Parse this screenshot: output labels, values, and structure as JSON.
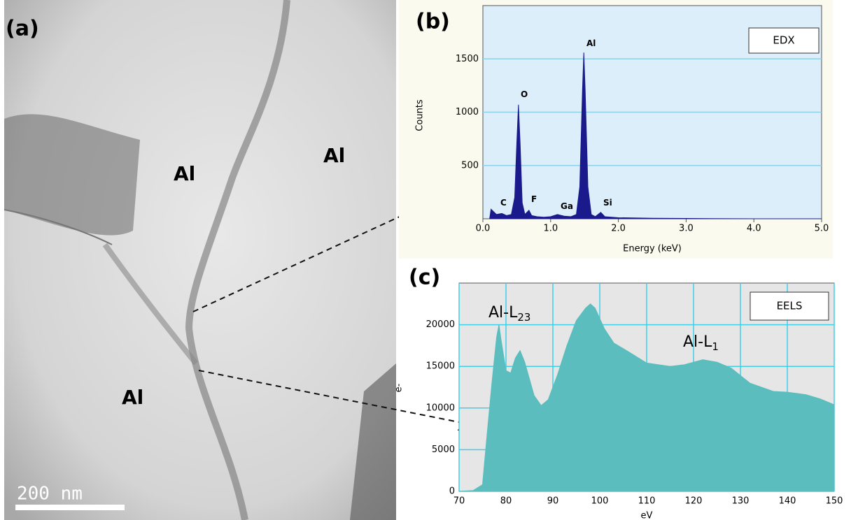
{
  "micrograph": {
    "panel": "(a)",
    "labels": [
      "Al",
      "Al",
      "Al"
    ],
    "scale_bar": "200 nm"
  },
  "chart_data": [
    {
      "type": "area",
      "panel": "(b)",
      "legend": "EDX",
      "xlabel": "Energy (keV)",
      "ylabel": "Counts",
      "color": "#1a1a8c",
      "background": "#dceefa",
      "grid_color": "#8fd0ea",
      "grid": "y",
      "xlim": [
        0,
        5
      ],
      "ylim": [
        0,
        2000
      ],
      "xticks": [
        {
          "value": 0,
          "label": "0.0"
        },
        {
          "value": 1,
          "label": "1.0"
        },
        {
          "value": 2,
          "label": "2.0"
        },
        {
          "value": 3,
          "label": "3.0"
        },
        {
          "value": 4,
          "label": "4.0"
        },
        {
          "value": 5,
          "label": "5.0"
        }
      ],
      "yticks": [
        500,
        1000,
        1500
      ],
      "x": [
        0.1,
        0.12,
        0.2,
        0.28,
        0.35,
        0.42,
        0.47,
        0.5,
        0.525,
        0.55,
        0.58,
        0.62,
        0.68,
        0.72,
        0.8,
        0.9,
        1.0,
        1.1,
        1.2,
        1.3,
        1.38,
        1.43,
        1.47,
        1.49,
        1.51,
        1.55,
        1.6,
        1.66,
        1.74,
        1.8,
        2.0,
        2.5,
        3.0,
        4.0,
        5.0
      ],
      "values": [
        0,
        90,
        40,
        50,
        30,
        40,
        200,
        700,
        1070,
        700,
        150,
        40,
        80,
        30,
        20,
        15,
        20,
        40,
        25,
        20,
        40,
        300,
        1200,
        1560,
        1200,
        300,
        40,
        20,
        60,
        20,
        10,
        5,
        3,
        0,
        0
      ],
      "annotations": [
        {
          "text": "C"
        },
        {
          "text": "O"
        },
        {
          "text": "F"
        },
        {
          "text": "Ga"
        },
        {
          "text": "Al"
        },
        {
          "text": "Si"
        }
      ]
    },
    {
      "type": "area",
      "panel": "(c)",
      "legend": "EELS",
      "xlabel": "eV",
      "ylabel": "e-",
      "color": "#5bbdbd",
      "background": "#e6e6e6",
      "grid_color": "#3fd0e8",
      "grid": "xy",
      "xlim": [
        70,
        150
      ],
      "ylim": [
        0,
        25000
      ],
      "xticks": [
        70,
        80,
        90,
        100,
        110,
        120,
        130,
        140,
        150
      ],
      "yticks": [
        0,
        5000,
        10000,
        15000,
        20000
      ],
      "x": [
        70,
        73,
        75,
        76,
        77,
        78,
        78.5,
        79,
        80,
        81,
        82,
        83,
        84,
        86,
        87.5,
        89,
        91,
        93,
        95,
        97,
        98,
        99,
        101,
        103,
        106,
        110,
        115,
        118,
        122,
        125,
        128,
        132,
        137,
        140,
        144,
        147,
        150
      ],
      "values": [
        0,
        100,
        800,
        7000,
        13000,
        18500,
        20000,
        18000,
        14500,
        14200,
        16000,
        16900,
        15500,
        11500,
        10300,
        11000,
        14000,
        17500,
        20500,
        22000,
        22500,
        22000,
        19500,
        17800,
        16800,
        15400,
        15000,
        15200,
        15800,
        15500,
        14800,
        13000,
        12000,
        11900,
        11600,
        11100,
        10400
      ],
      "annotations": [
        {
          "text": "Al-L",
          "sub": "23"
        },
        {
          "text": "Al-L",
          "sub": "1"
        }
      ]
    }
  ]
}
